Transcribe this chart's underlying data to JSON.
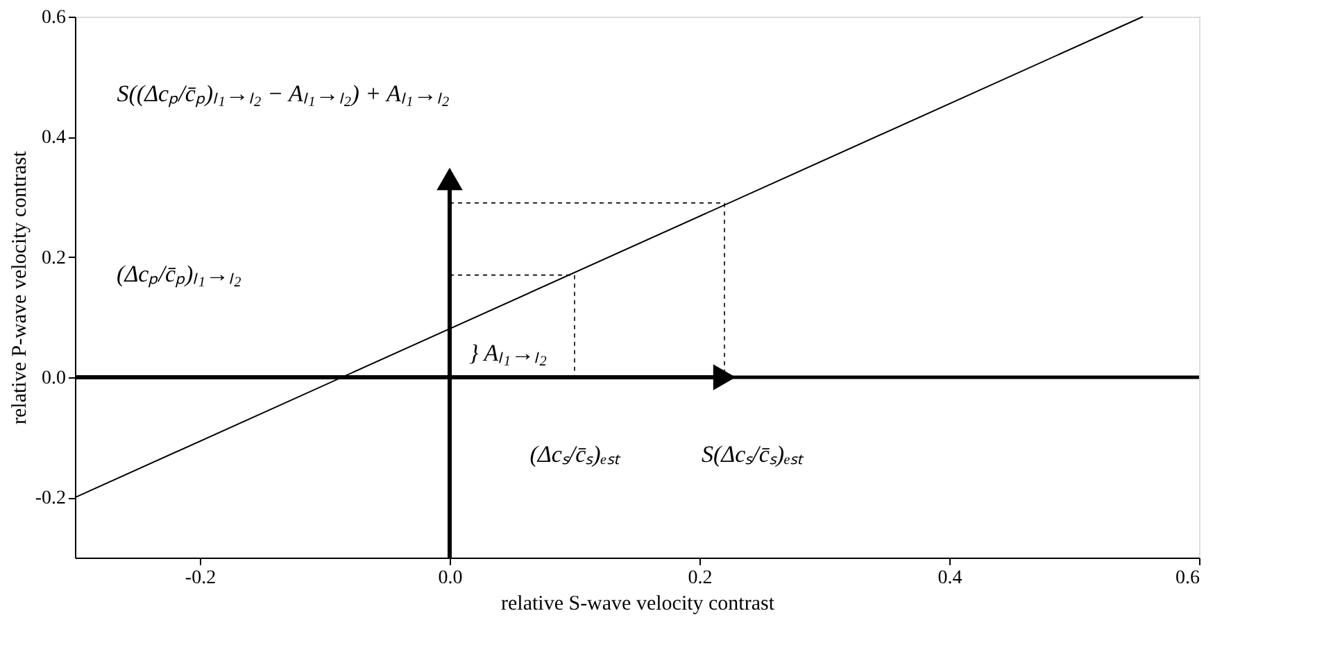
{
  "chart_data": {
    "type": "line",
    "xlabel": "relative S-wave velocity contrast",
    "ylabel": "relative P-wave velocity contrast",
    "xlim": [
      -0.3,
      0.6
    ],
    "ylim": [
      -0.3,
      0.6
    ],
    "xticks": [
      {
        "value": -0.2,
        "label": "-0.2"
      },
      {
        "value": 0.0,
        "label": "0.0"
      },
      {
        "value": 0.2,
        "label": "0.2"
      },
      {
        "value": 0.4,
        "label": "0.4"
      },
      {
        "value": 0.6,
        "label": "0.6"
      }
    ],
    "yticks": [
      {
        "value": -0.2,
        "label": "-0.2"
      },
      {
        "value": 0.0,
        "label": "0.0"
      },
      {
        "value": 0.2,
        "label": "0.2"
      },
      {
        "value": 0.4,
        "label": "0.4"
      },
      {
        "value": 0.6,
        "label": "0.6"
      }
    ],
    "grid": false,
    "series": [
      {
        "color": "#000000",
        "line_style": "solid",
        "x": [
          -0.3,
          0.555
        ],
        "values": [
          -0.2,
          0.6
        ]
      },
      {
        "color": "#000000",
        "line_style": "dashed",
        "x": [
          0.0,
          0.1,
          0.1
        ],
        "values": [
          0.17,
          0.17,
          0.0
        ]
      },
      {
        "color": "#000000",
        "line_style": "dashed",
        "x": [
          0.0,
          0.22,
          0.22
        ],
        "values": [
          0.29,
          0.29,
          0.0
        ]
      },
      {
        "color": "#000000",
        "line_style": "solid",
        "x": [
          0.0,
          0.0
        ],
        "values": [
          -0.3,
          0.33
        ]
      },
      {
        "color": "#000000",
        "line_style": "solid",
        "x": [
          -0.3,
          0.22
        ],
        "values": [
          0.0,
          0.0
        ]
      }
    ],
    "ref_lines": [
      {
        "axis": "y",
        "value": 0,
        "color": "#000000"
      }
    ],
    "annotations": [
      "S((Δcₚ/c̄ₚ)ₗ₁→ₗ₂ − Aₗ₁→ₗ₂) + Aₗ₁→ₗ₂",
      "(Δcₚ/c̄ₚ)ₗ₁→ₗ₂",
      "} Aₗ₁→ₗ₂",
      "(Δcₛ/c̄ₛ)ₑₛₜ",
      "S(Δcₛ/c̄ₛ)ₑₛₜ"
    ]
  }
}
